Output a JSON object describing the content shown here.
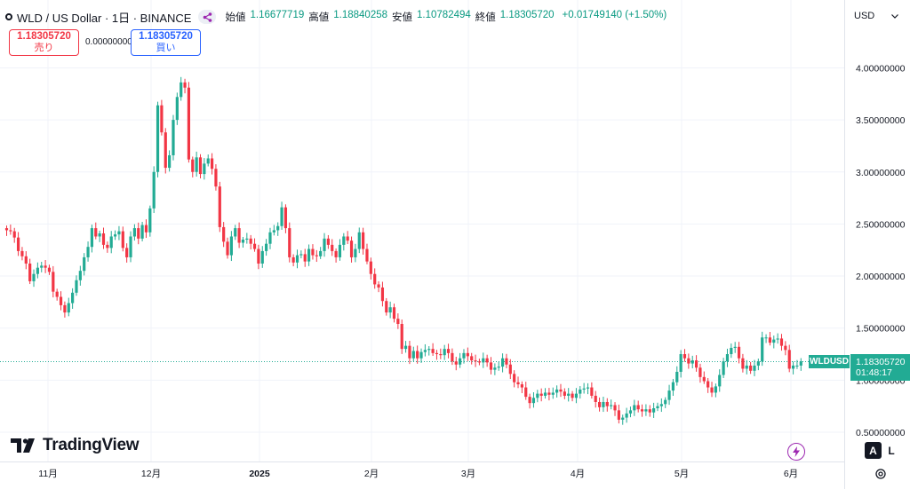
{
  "header": {
    "symbol_line": "WLD / US Dollar · 1日 · BINANCE",
    "ohlc": [
      {
        "label": "始値",
        "value": "1.16677719"
      },
      {
        "label": "高値",
        "value": "1.18840258"
      },
      {
        "label": "安値",
        "value": "1.10782494"
      },
      {
        "label": "終値",
        "value": "1.18305720"
      }
    ],
    "change": "+0.01749140 (+1.50%)"
  },
  "trade": {
    "sell_price": "1.18305720",
    "sell_label": "売り",
    "spread": "0.00000000",
    "buy_price": "1.18305720",
    "buy_label": "買い"
  },
  "currency_button": "USD",
  "last_price": {
    "symbol": "WLDUSD",
    "price": "1.18305720",
    "countdown": "01:48:17"
  },
  "brand": "TradingView",
  "scale_buttons": {
    "auto": "A",
    "log": "L"
  },
  "colors": {
    "up": "#089981",
    "down": "#f23645",
    "up_body": "#22ab94",
    "down_body": "#f23645",
    "grid": "#f0f3fa"
  },
  "chart_data": {
    "type": "candlestick",
    "title": "WLD / US Dollar · 1日 · BINANCE",
    "x_ticks": [
      "11月",
      "12月",
      "2025",
      "2月",
      "3月",
      "4月",
      "5月",
      "6月"
    ],
    "y_ticks": [
      "4.00000000",
      "3.50000000",
      "3.00000000",
      "2.50000000",
      "2.00000000",
      "1.50000000",
      "1.00000000",
      "0.50000000"
    ],
    "ylim": [
      0.5,
      4.0
    ],
    "grid": true,
    "close": [
      2.44,
      2.43,
      2.37,
      2.24,
      2.19,
      2.12,
      1.95,
      2.02,
      2.08,
      2.1,
      2.08,
      2.04,
      1.85,
      1.8,
      1.72,
      1.65,
      1.74,
      1.84,
      1.96,
      2.05,
      2.18,
      2.28,
      2.46,
      2.38,
      2.41,
      2.3,
      2.27,
      2.38,
      2.4,
      2.43,
      2.27,
      2.18,
      2.38,
      2.46,
      2.36,
      2.49,
      2.42,
      2.65,
      3.0,
      3.64,
      3.38,
      3.04,
      3.16,
      3.5,
      3.72,
      3.86,
      3.81,
      3.12,
      3.0,
      3.14,
      2.98,
      3.08,
      3.13,
      3.03,
      2.86,
      2.47,
      2.33,
      2.2,
      2.38,
      2.46,
      2.32,
      2.35,
      2.36,
      2.31,
      2.26,
      2.12,
      2.24,
      2.31,
      2.42,
      2.44,
      2.48,
      2.66,
      2.46,
      2.18,
      2.13,
      2.2,
      2.21,
      2.14,
      2.26,
      2.2,
      2.19,
      2.24,
      2.36,
      2.3,
      2.24,
      2.18,
      2.3,
      2.38,
      2.34,
      2.18,
      2.26,
      2.42,
      2.26,
      2.14,
      2.02,
      1.92,
      1.89,
      1.76,
      1.65,
      1.7,
      1.59,
      1.54,
      1.3,
      1.33,
      1.21,
      1.28,
      1.21,
      1.27,
      1.29,
      1.3,
      1.26,
      1.25,
      1.24,
      1.3,
      1.26,
      1.18,
      1.15,
      1.21,
      1.26,
      1.23,
      1.19,
      1.18,
      1.17,
      1.21,
      1.17,
      1.1,
      1.12,
      1.13,
      1.21,
      1.15,
      1.06,
      0.98,
      0.96,
      0.93,
      0.84,
      0.78,
      0.83,
      0.87,
      0.85,
      0.88,
      0.86,
      0.88,
      0.91,
      0.89,
      0.85,
      0.87,
      0.83,
      0.87,
      0.91,
      0.92,
      0.93,
      0.85,
      0.79,
      0.74,
      0.79,
      0.75,
      0.76,
      0.71,
      0.62,
      0.64,
      0.68,
      0.71,
      0.76,
      0.72,
      0.7,
      0.72,
      0.69,
      0.73,
      0.75,
      0.77,
      0.81,
      0.9,
      0.98,
      1.08,
      1.25,
      1.21,
      1.16,
      1.19,
      1.12,
      1.03,
      0.99,
      0.93,
      0.88,
      0.94,
      1.05,
      1.18,
      1.25,
      1.31,
      1.32,
      1.21,
      1.11,
      1.14,
      1.09,
      1.14,
      1.18,
      1.41,
      1.41,
      1.36,
      1.39,
      1.4,
      1.33,
      1.29,
      1.11,
      1.14,
      1.14,
      1.18
    ]
  }
}
